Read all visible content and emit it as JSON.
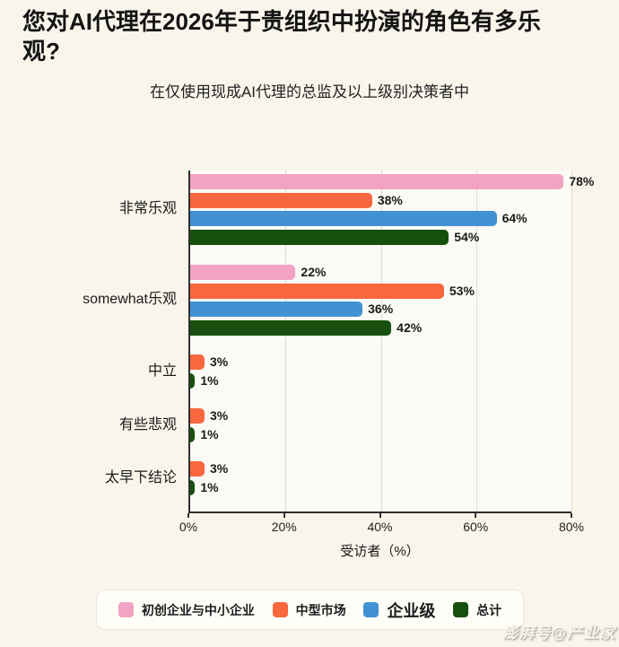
{
  "title": "您对AI代理在2026年于贵组织中扮演的角色有多乐观?",
  "subtitle": "在仅使用现成AI代理的总监及以上级别决策者中",
  "watermark": "澎湃号@产业家",
  "colors": {
    "background": "#f9f5eb",
    "plot_background": "#fbfaf5",
    "gridline": "#dedbd1",
    "axis": "#2f2f2f",
    "pink": "#f2a3c3",
    "orange": "#f9673f",
    "blue": "#4292d3",
    "dark_green": "#17500e"
  },
  "chart_data": {
    "type": "bar",
    "orientation": "horizontal",
    "title": "您对AI代理在2026年于贵组织中扮演的角色有多乐观?",
    "subtitle": "在仅使用现成AI代理的总监及以上级别决策者中",
    "categories": [
      "非常乐观",
      "somewhat乐观",
      "中立",
      "有些悲观",
      "太早下结论"
    ],
    "series": [
      {
        "name": "初创企业与中小企业",
        "color": "#f2a3c3",
        "values": [
          78,
          22,
          null,
          null,
          null
        ]
      },
      {
        "name": "中型市场",
        "color": "#f9673f",
        "values": [
          38,
          53,
          3,
          3,
          3
        ]
      },
      {
        "name": "企业级",
        "color": "#4292d3",
        "values": [
          64,
          36,
          null,
          null,
          null
        ]
      },
      {
        "name": "总计",
        "color": "#17500e",
        "values": [
          54,
          42,
          1,
          1,
          1
        ]
      }
    ],
    "value_label_format": "{v}%",
    "xlabel": "受访者（%）",
    "xticks": [
      "0%",
      "20%",
      "40%",
      "60%",
      "80%"
    ],
    "xlim": [
      0,
      80
    ],
    "grid": true,
    "legend_position": "bottom"
  }
}
